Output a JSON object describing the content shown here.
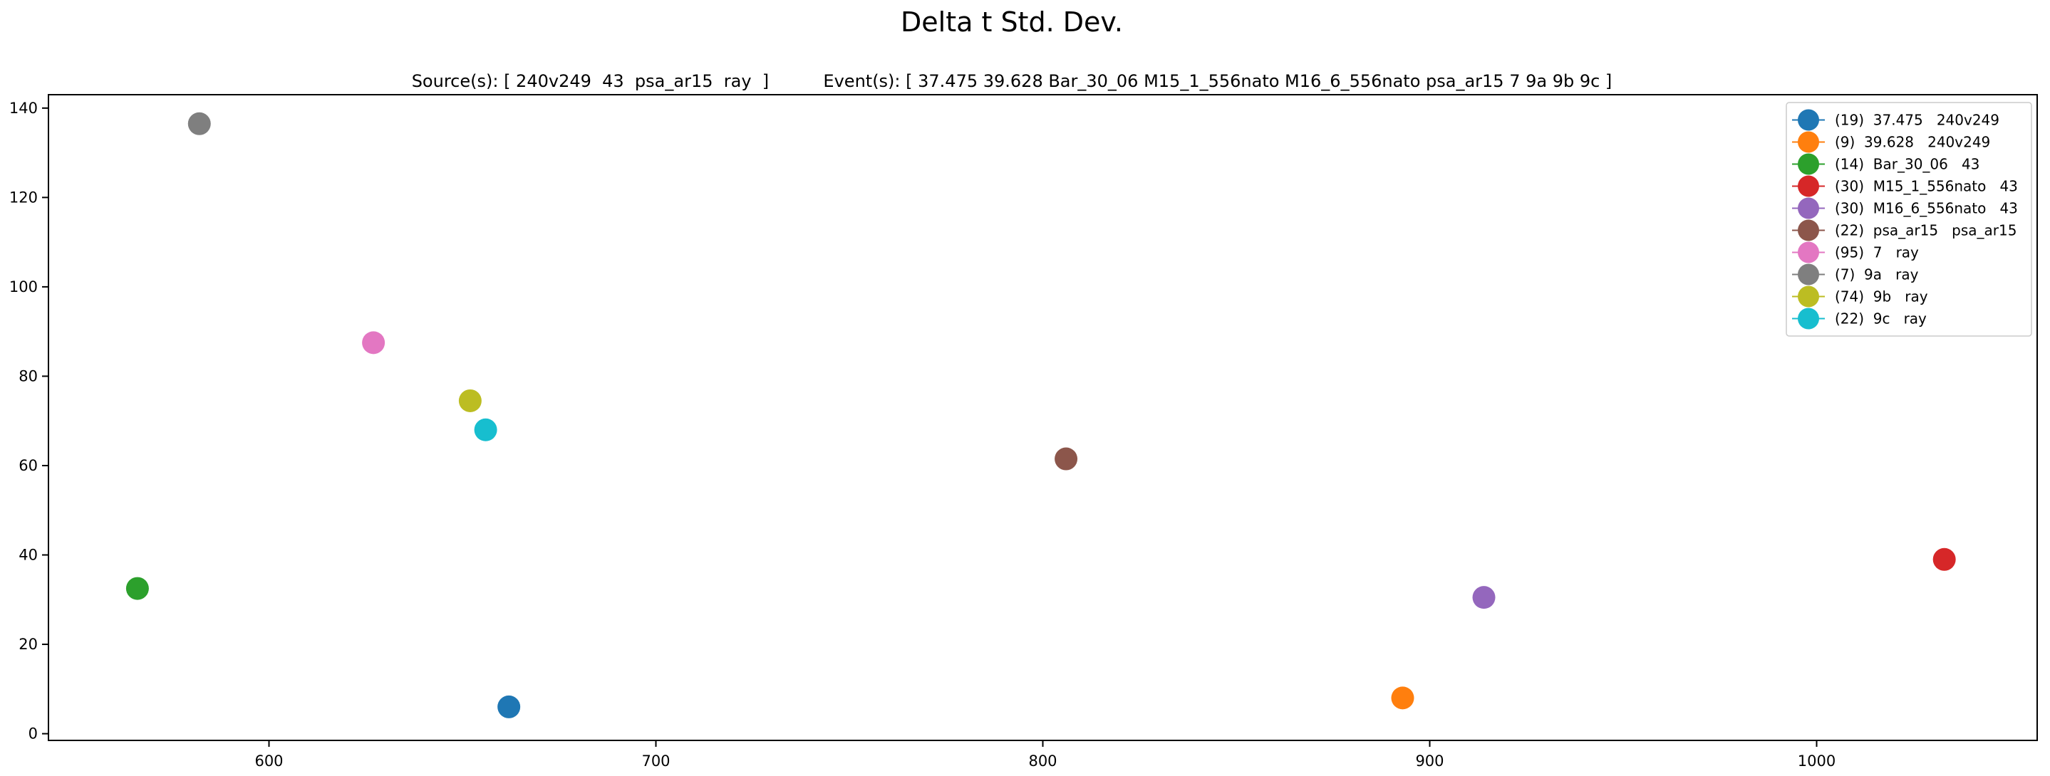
{
  "chart_data": {
    "type": "scatter",
    "title": "Delta t Std. Dev.",
    "subtitle": "Source(s): [ 240v249  43  psa_ar15  ray  ]          Event(s): [ 37.475 39.628 Bar_30_06 M15_1_556nato M16_6_556nato psa_ar15 7 9a 9b 9c ]",
    "xlabel": "",
    "ylabel": "",
    "xlim": [
      543,
      1057
    ],
    "ylim": [
      -1.5,
      143
    ],
    "xticks": [
      600,
      700,
      800,
      900,
      1000
    ],
    "yticks": [
      0,
      20,
      40,
      60,
      80,
      100,
      120,
      140
    ],
    "grid": false,
    "legend_position": "top-right",
    "series": [
      {
        "name": "(19)  37.475   240v249",
        "color": "#1f77b4",
        "x": 662,
        "y": 6
      },
      {
        "name": "(9)  39.628   240v249",
        "color": "#ff7f0e",
        "x": 893,
        "y": 8
      },
      {
        "name": "(14)  Bar_30_06   43",
        "color": "#2ca02c",
        "x": 566,
        "y": 32.5
      },
      {
        "name": "(30)  M15_1_556nato   43",
        "color": "#d62728",
        "x": 1033,
        "y": 39
      },
      {
        "name": "(30)  M16_6_556nato   43",
        "color": "#9467bd",
        "x": 914,
        "y": 30.5
      },
      {
        "name": "(22)  psa_ar15   psa_ar15",
        "color": "#8c564b",
        "x": 806,
        "y": 61.5
      },
      {
        "name": "(95)  7   ray",
        "color": "#e377c2",
        "x": 627,
        "y": 87.5
      },
      {
        "name": "(7)  9a   ray",
        "color": "#7f7f7f",
        "x": 582,
        "y": 136.5
      },
      {
        "name": "(74)  9b   ray",
        "color": "#bcbd22",
        "x": 652,
        "y": 74.5
      },
      {
        "name": "(22)  9c   ray",
        "color": "#17becf",
        "x": 656,
        "y": 68
      }
    ]
  }
}
